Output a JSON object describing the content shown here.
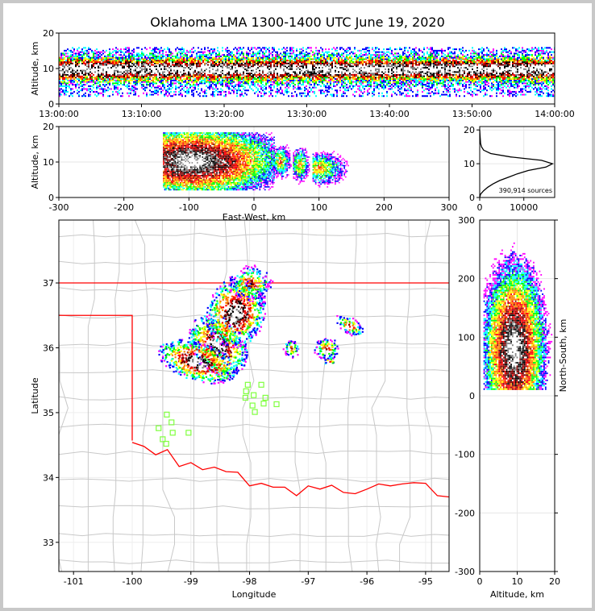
{
  "title": "Oklahoma LMA 1300-1400 UTC June 19, 2020",
  "colors": {
    "state_line": "#ff0000",
    "county_line": "#c8c8c8",
    "stations": "#80ff40",
    "density_scale": [
      "#ff00ff",
      "#0000ff",
      "#00ffff",
      "#00ff00",
      "#ffff00",
      "#ff8000",
      "#ff0000",
      "#800000",
      "#000000",
      "#808080",
      "#ffffff"
    ]
  },
  "chart_data": [
    {
      "id": "time_height",
      "type": "heatmap",
      "xlabel": "",
      "ylabel": "Altitude, km",
      "x_ticks": [
        "13:00:00",
        "13:10:00",
        "13:20:00",
        "13:30:00",
        "13:40:00",
        "13:50:00",
        "14:00:00"
      ],
      "xlim": [
        "13:00:00",
        "14:00:00"
      ],
      "y_ticks": [
        0,
        10,
        20
      ],
      "ylim": [
        0,
        20
      ]
    },
    {
      "id": "east_west_altitude",
      "type": "heatmap",
      "xlabel": "East-West, km",
      "ylabel": "Altitude, km",
      "x_ticks": [
        -300,
        -200,
        -100,
        0,
        100,
        200,
        300
      ],
      "xlim": [
        -300,
        300
      ],
      "y_ticks": [
        0,
        10,
        20
      ],
      "ylim": [
        0,
        20
      ],
      "clusters": [
        {
          "x_range": [
            -140,
            30
          ],
          "alt_range": [
            2,
            18
          ],
          "core_x": -95,
          "core_alt": 10
        },
        {
          "x_range": [
            30,
            60
          ],
          "alt_range": [
            3,
            15
          ],
          "core_x": 40,
          "core_alt": 10
        },
        {
          "x_range": [
            60,
            90
          ],
          "alt_range": [
            2,
            14
          ],
          "core_x": 70,
          "core_alt": 9
        },
        {
          "x_range": [
            90,
            170
          ],
          "alt_range": [
            2,
            14
          ],
          "core_x": 100,
          "core_alt": 8
        }
      ]
    },
    {
      "id": "altitude_histogram",
      "type": "line",
      "x_ticks": [
        0,
        10000
      ],
      "xlim": [
        0,
        17000
      ],
      "y_ticks": [
        0,
        10,
        20
      ],
      "ylim": [
        0,
        21
      ],
      "annotation": "390,914 sources",
      "points": [
        [
          0,
          0
        ],
        [
          200,
          1
        ],
        [
          900,
          2
        ],
        [
          1800,
          3
        ],
        [
          3000,
          4
        ],
        [
          4500,
          5
        ],
        [
          6500,
          6
        ],
        [
          8500,
          7
        ],
        [
          11000,
          8
        ],
        [
          15000,
          9
        ],
        [
          16500,
          10
        ],
        [
          14000,
          11
        ],
        [
          7000,
          12
        ],
        [
          2500,
          13
        ],
        [
          900,
          14
        ],
        [
          400,
          15
        ],
        [
          200,
          16
        ],
        [
          100,
          18
        ],
        [
          0,
          20
        ]
      ]
    },
    {
      "id": "plan_view",
      "type": "scatter",
      "xlabel": "Longitude",
      "ylabel": "Latitude",
      "x_ticks": [
        -101,
        -100,
        -99,
        -98,
        -97,
        -96,
        -95
      ],
      "xlim": [
        -101.25,
        -94.6
      ],
      "y_ticks": [
        33,
        34,
        35,
        36,
        37
      ],
      "ylim": [
        32.55,
        37.97
      ],
      "stations": [
        [
          -99.41,
          34.97
        ],
        [
          -99.33,
          34.85
        ],
        [
          -99.55,
          34.76
        ],
        [
          -99.31,
          34.69
        ],
        [
          -99.48,
          34.59
        ],
        [
          -99.42,
          34.52
        ],
        [
          -99.04,
          34.69
        ],
        [
          -98.03,
          35.43
        ],
        [
          -98.06,
          35.33
        ],
        [
          -98.07,
          35.23
        ],
        [
          -97.93,
          35.27
        ],
        [
          -97.8,
          35.43
        ],
        [
          -97.73,
          35.23
        ],
        [
          -97.76,
          35.14
        ],
        [
          -97.54,
          35.13
        ],
        [
          -97.95,
          35.11
        ],
        [
          -97.91,
          35.01
        ]
      ],
      "clusters": [
        {
          "lon": -98.55,
          "lat": 36.05,
          "rx": 0.55,
          "ry": 0.42,
          "rot": -40
        },
        {
          "lon": -98.25,
          "lat": 36.55,
          "rx": 0.5,
          "ry": 0.55,
          "rot": -30
        },
        {
          "lon": -98.9,
          "lat": 35.8,
          "rx": 0.7,
          "ry": 0.3,
          "rot": -15
        },
        {
          "lon": -98.0,
          "lat": 37.0,
          "rx": 0.4,
          "ry": 0.3,
          "rot": 0
        },
        {
          "lon": -96.3,
          "lat": 36.35,
          "rx": 0.3,
          "ry": 0.14,
          "rot": -30
        },
        {
          "lon": -96.7,
          "lat": 36.0,
          "rx": 0.25,
          "ry": 0.2,
          "rot": 0
        },
        {
          "lon": -96.65,
          "lat": 35.8,
          "rx": 0.12,
          "ry": 0.06,
          "rot": 0
        },
        {
          "lon": -97.3,
          "lat": 36.0,
          "rx": 0.15,
          "ry": 0.15,
          "rot": 0
        }
      ]
    },
    {
      "id": "north_south_altitude",
      "type": "heatmap",
      "xlabel": "Altitude, km",
      "ylabel": "North-South, km",
      "x_ticks": [
        0,
        10,
        20
      ],
      "xlim": [
        0,
        20
      ],
      "y_ticks": [
        -300,
        -200,
        -100,
        0,
        100,
        200,
        300
      ],
      "ylim": [
        -300,
        300
      ],
      "clusters": [
        {
          "ns_range": [
            10,
            260
          ],
          "alt_range": [
            1,
            20
          ],
          "core_ns": 80,
          "core_alt": 9
        }
      ]
    }
  ]
}
